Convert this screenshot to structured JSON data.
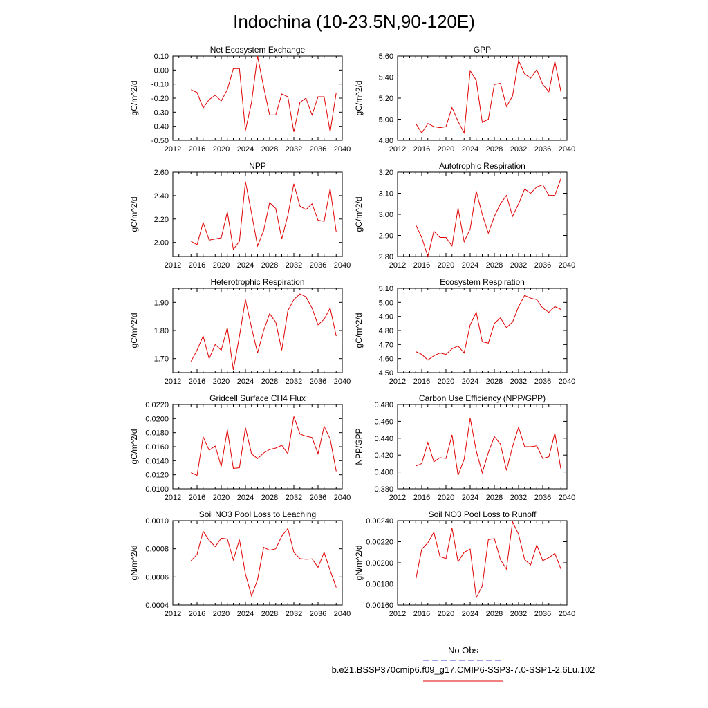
{
  "title": "Indochina (10-23.5N,90-120E)",
  "legend": {
    "entries": [
      {
        "label": "No Obs",
        "color": "#4444cc",
        "dash": true
      },
      {
        "label": "b.e21.BSSP370cmip6.f09_g17.CMIP6-SSP3-7.0-SSP1-2.6Lu.102",
        "color": "#e00000",
        "dash": false
      }
    ]
  },
  "line_color": "#e00000",
  "chart_data": [
    {
      "type": "line",
      "title": "Net Ecosystem Exchange",
      "ylabel": "gC/m^2/d",
      "xlim": [
        2012,
        2040
      ],
      "ylim": [
        -0.5,
        0.1
      ],
      "xticks": [
        2012,
        2016,
        2020,
        2024,
        2028,
        2032,
        2036,
        2040
      ],
      "yticks": [
        -0.5,
        -0.4,
        -0.3,
        -0.2,
        -0.1,
        0.0,
        0.1
      ],
      "ytick_labels": [
        "-0.50",
        "-0.40",
        "-0.30",
        "-0.20",
        "-0.10",
        "0.00",
        "0.10"
      ],
      "x": [
        2015,
        2016,
        2017,
        2018,
        2019,
        2020,
        2021,
        2022,
        2023,
        2024,
        2025,
        2026,
        2027,
        2028,
        2029,
        2030,
        2031,
        2032,
        2033,
        2034,
        2035,
        2036,
        2037,
        2038,
        2039
      ],
      "values": [
        -0.14,
        -0.16,
        -0.27,
        -0.21,
        -0.18,
        -0.22,
        -0.14,
        0.01,
        0.01,
        -0.43,
        -0.23,
        0.1,
        -0.12,
        -0.32,
        -0.32,
        -0.17,
        -0.19,
        -0.44,
        -0.23,
        -0.2,
        -0.32,
        -0.19,
        -0.19,
        -0.44,
        -0.16
      ]
    },
    {
      "type": "line",
      "title": "GPP",
      "ylabel": "gC/m^2/d",
      "xlim": [
        2012,
        2040
      ],
      "ylim": [
        4.8,
        5.6
      ],
      "xticks": [
        2012,
        2016,
        2020,
        2024,
        2028,
        2032,
        2036,
        2040
      ],
      "yticks": [
        4.8,
        5.0,
        5.2,
        5.4,
        5.6
      ],
      "ytick_labels": [
        "4.80",
        "5.00",
        "5.20",
        "5.40",
        "5.60"
      ],
      "x": [
        2015,
        2016,
        2017,
        2018,
        2019,
        2020,
        2021,
        2022,
        2023,
        2024,
        2025,
        2026,
        2027,
        2028,
        2029,
        2030,
        2031,
        2032,
        2033,
        2034,
        2035,
        2036,
        2037,
        2038,
        2039
      ],
      "values": [
        4.96,
        4.87,
        4.96,
        4.93,
        4.92,
        4.93,
        5.11,
        4.98,
        4.87,
        5.46,
        5.37,
        4.97,
        5.0,
        5.33,
        5.34,
        5.12,
        5.22,
        5.56,
        5.43,
        5.39,
        5.47,
        5.33,
        5.26,
        5.55,
        5.26
      ]
    },
    {
      "type": "line",
      "title": "NPP",
      "ylabel": "gC/m^2/d",
      "xlim": [
        2012,
        2040
      ],
      "ylim": [
        1.88,
        2.6
      ],
      "xticks": [
        2012,
        2016,
        2020,
        2024,
        2028,
        2032,
        2036,
        2040
      ],
      "yticks": [
        2.0,
        2.2,
        2.4,
        2.6
      ],
      "ytick_labels": [
        "2.00",
        "2.20",
        "2.40",
        "2.60"
      ],
      "x": [
        2015,
        2016,
        2017,
        2018,
        2019,
        2020,
        2021,
        2022,
        2023,
        2024,
        2025,
        2026,
        2027,
        2028,
        2029,
        2030,
        2031,
        2032,
        2033,
        2034,
        2035,
        2036,
        2037,
        2038,
        2039
      ],
      "values": [
        2.01,
        1.98,
        2.17,
        2.02,
        2.03,
        2.04,
        2.26,
        1.94,
        2.01,
        2.52,
        2.25,
        1.97,
        2.1,
        2.34,
        2.29,
        2.03,
        2.23,
        2.5,
        2.31,
        2.28,
        2.33,
        2.19,
        2.18,
        2.46,
        2.09
      ]
    },
    {
      "type": "line",
      "title": "Autotrophic Respiration",
      "ylabel": "gC/m^2/d",
      "xlim": [
        2012,
        2040
      ],
      "ylim": [
        2.8,
        3.2
      ],
      "xticks": [
        2012,
        2016,
        2020,
        2024,
        2028,
        2032,
        2036,
        2040
      ],
      "yticks": [
        2.8,
        2.9,
        3.0,
        3.1,
        3.2
      ],
      "ytick_labels": [
        "2.80",
        "2.90",
        "3.00",
        "3.10",
        "3.20"
      ],
      "x": [
        2015,
        2016,
        2017,
        2018,
        2019,
        2020,
        2021,
        2022,
        2023,
        2024,
        2025,
        2026,
        2027,
        2028,
        2029,
        2030,
        2031,
        2032,
        2033,
        2034,
        2035,
        2036,
        2037,
        2038,
        2039
      ],
      "values": [
        2.95,
        2.89,
        2.8,
        2.92,
        2.89,
        2.89,
        2.85,
        3.03,
        2.87,
        2.93,
        3.11,
        3.0,
        2.91,
        2.99,
        3.05,
        3.09,
        2.99,
        3.05,
        3.12,
        3.1,
        3.13,
        3.14,
        3.09,
        3.09,
        3.17
      ]
    },
    {
      "type": "line",
      "title": "Heterotrophic Respiration",
      "ylabel": "gC/m^2/d",
      "xlim": [
        2012,
        2040
      ],
      "ylim": [
        1.65,
        1.95
      ],
      "xticks": [
        2012,
        2016,
        2020,
        2024,
        2028,
        2032,
        2036,
        2040
      ],
      "yticks": [
        1.7,
        1.8,
        1.9
      ],
      "ytick_labels": [
        "1.70",
        "1.80",
        "1.90"
      ],
      "x": [
        2015,
        2016,
        2017,
        2018,
        2019,
        2020,
        2021,
        2022,
        2023,
        2024,
        2025,
        2026,
        2027,
        2028,
        2029,
        2030,
        2031,
        2032,
        2033,
        2034,
        2035,
        2036,
        2037,
        2038,
        2039
      ],
      "values": [
        1.69,
        1.73,
        1.78,
        1.7,
        1.75,
        1.73,
        1.81,
        1.66,
        1.78,
        1.91,
        1.81,
        1.72,
        1.8,
        1.86,
        1.83,
        1.73,
        1.87,
        1.91,
        1.93,
        1.92,
        1.88,
        1.82,
        1.84,
        1.88,
        1.78
      ]
    },
    {
      "type": "line",
      "title": "Ecosystem Respiration",
      "ylabel": "gC/m^2/d",
      "xlim": [
        2012,
        2040
      ],
      "ylim": [
        4.5,
        5.1
      ],
      "xticks": [
        2012,
        2016,
        2020,
        2024,
        2028,
        2032,
        2036,
        2040
      ],
      "yticks": [
        4.5,
        4.6,
        4.7,
        4.8,
        4.9,
        5.0,
        5.1
      ],
      "ytick_labels": [
        "4.50",
        "4.60",
        "4.70",
        "4.80",
        "4.90",
        "5.00",
        "5.10"
      ],
      "x": [
        2015,
        2016,
        2017,
        2018,
        2019,
        2020,
        2021,
        2022,
        2023,
        2024,
        2025,
        2026,
        2027,
        2028,
        2029,
        2030,
        2031,
        2032,
        2033,
        2034,
        2035,
        2036,
        2037,
        2038,
        2039
      ],
      "values": [
        4.65,
        4.63,
        4.59,
        4.62,
        4.64,
        4.63,
        4.67,
        4.69,
        4.64,
        4.84,
        4.93,
        4.72,
        4.71,
        4.85,
        4.89,
        4.82,
        4.86,
        4.97,
        5.05,
        5.03,
        5.02,
        4.96,
        4.93,
        4.97,
        4.95
      ]
    },
    {
      "type": "line",
      "title": "Gridcell Surface CH4 Flux",
      "ylabel": "gC/m^2/d",
      "xlim": [
        2012,
        2040
      ],
      "ylim": [
        0.01,
        0.022
      ],
      "xticks": [
        2012,
        2016,
        2020,
        2024,
        2028,
        2032,
        2036,
        2040
      ],
      "yticks": [
        0.01,
        0.012,
        0.014,
        0.016,
        0.018,
        0.02,
        0.022
      ],
      "ytick_labels": [
        "0.0100",
        "0.0120",
        "0.0140",
        "0.0160",
        "0.0180",
        "0.0200",
        "0.0220"
      ],
      "x": [
        2015,
        2016,
        2017,
        2018,
        2019,
        2020,
        2021,
        2022,
        2023,
        2024,
        2025,
        2026,
        2027,
        2028,
        2029,
        2030,
        2031,
        2032,
        2033,
        2034,
        2035,
        2036,
        2037,
        2038,
        2039
      ],
      "values": [
        0.0123,
        0.0119,
        0.0174,
        0.0155,
        0.0161,
        0.0132,
        0.0184,
        0.0129,
        0.013,
        0.0187,
        0.015,
        0.0143,
        0.0151,
        0.0156,
        0.0158,
        0.0162,
        0.015,
        0.0203,
        0.0178,
        0.0175,
        0.0173,
        0.015,
        0.0189,
        0.0171,
        0.0125
      ]
    },
    {
      "type": "line",
      "title": "Carbon Use Efficiency (NPP/GPP)",
      "ylabel": "NPP/GPP",
      "xlim": [
        2012,
        2040
      ],
      "ylim": [
        0.38,
        0.48
      ],
      "xticks": [
        2012,
        2016,
        2020,
        2024,
        2028,
        2032,
        2036,
        2040
      ],
      "yticks": [
        0.38,
        0.4,
        0.42,
        0.44,
        0.46,
        0.48
      ],
      "ytick_labels": [
        "0.380",
        "0.400",
        "0.420",
        "0.440",
        "0.460",
        "0.480"
      ],
      "x": [
        2015,
        2016,
        2017,
        2018,
        2019,
        2020,
        2021,
        2022,
        2023,
        2024,
        2025,
        2026,
        2027,
        2028,
        2029,
        2030,
        2031,
        2032,
        2033,
        2034,
        2035,
        2036,
        2037,
        2038,
        2039
      ],
      "values": [
        0.407,
        0.41,
        0.435,
        0.412,
        0.417,
        0.416,
        0.444,
        0.396,
        0.415,
        0.464,
        0.425,
        0.399,
        0.423,
        0.442,
        0.433,
        0.402,
        0.43,
        0.453,
        0.43,
        0.43,
        0.431,
        0.416,
        0.418,
        0.446,
        0.403
      ]
    },
    {
      "type": "line",
      "title": "Soil NO3 Pool Loss to Leaching",
      "ylabel": "gN/m^2/d",
      "xlim": [
        2012,
        2040
      ],
      "ylim": [
        0.0004,
        0.001
      ],
      "xticks": [
        2012,
        2016,
        2020,
        2024,
        2028,
        2032,
        2036,
        2040
      ],
      "yticks": [
        0.0004,
        0.0006,
        0.0008,
        0.001
      ],
      "ytick_labels": [
        "0.0004",
        "0.0006",
        "0.0008",
        "0.0010"
      ],
      "x": [
        2015,
        2016,
        2017,
        2018,
        2019,
        2020,
        2021,
        2022,
        2023,
        2024,
        2025,
        2026,
        2027,
        2028,
        2029,
        2030,
        2031,
        2032,
        2033,
        2034,
        2035,
        2036,
        2037,
        2038,
        2039
      ],
      "values": [
        0.000715,
        0.00076,
        0.000925,
        0.00086,
        0.000815,
        0.000875,
        0.00087,
        0.00072,
        0.000865,
        0.00062,
        0.000465,
        0.00058,
        0.00081,
        0.00079,
        0.0008,
        0.00089,
        0.000945,
        0.000775,
        0.00073,
        0.000725,
        0.000728,
        0.000668,
        0.000775,
        0.000645,
        0.000525
      ]
    },
    {
      "type": "line",
      "title": "Soil NO3 Pool Loss to Runoff",
      "ylabel": "gN/m^2/d",
      "xlim": [
        2012,
        2040
      ],
      "ylim": [
        0.0016,
        0.0024
      ],
      "xticks": [
        2012,
        2016,
        2020,
        2024,
        2028,
        2032,
        2036,
        2040
      ],
      "yticks": [
        0.0016,
        0.0018,
        0.002,
        0.0022,
        0.0024
      ],
      "ytick_labels": [
        "0.00160",
        "0.00180",
        "0.00200",
        "0.00220",
        "0.00240"
      ],
      "x": [
        2015,
        2016,
        2017,
        2018,
        2019,
        2020,
        2021,
        2022,
        2023,
        2024,
        2025,
        2026,
        2027,
        2028,
        2029,
        2030,
        2031,
        2032,
        2033,
        2034,
        2035,
        2036,
        2037,
        2038,
        2039
      ],
      "values": [
        0.00184,
        0.00213,
        0.00219,
        0.00229,
        0.00206,
        0.00204,
        0.00233,
        0.00201,
        0.0021,
        0.00213,
        0.00167,
        0.00178,
        0.00222,
        0.00223,
        0.00203,
        0.00194,
        0.00239,
        0.00227,
        0.00203,
        0.00198,
        0.00217,
        0.00202,
        0.00205,
        0.00209,
        0.00194
      ]
    }
  ]
}
